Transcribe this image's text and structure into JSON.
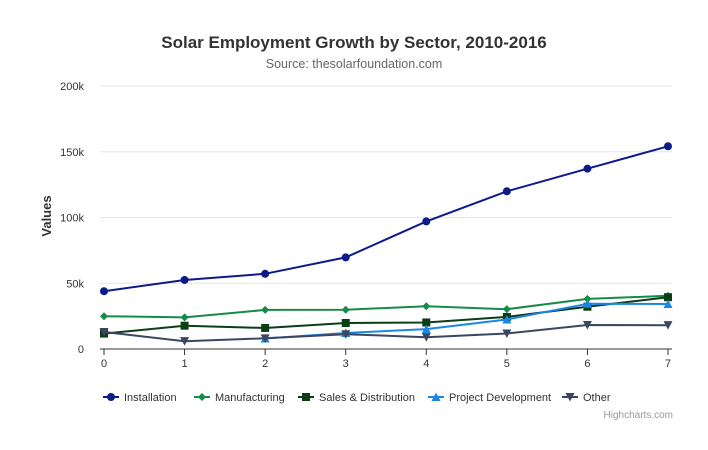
{
  "chart_data": {
    "type": "line",
    "title": "Solar Employment Growth by Sector, 2010-2016",
    "subtitle": "Source: thesolarfoundation.com",
    "xlabel": "",
    "ylabel": "Values",
    "x": [
      0,
      1,
      2,
      3,
      4,
      5,
      6,
      7
    ],
    "ylim": [
      0,
      200000
    ],
    "yticks": [
      0,
      50000,
      100000,
      150000,
      200000
    ],
    "ytick_labels": [
      "0",
      "50k",
      "100k",
      "150k",
      "200k"
    ],
    "xtick_labels": [
      "0",
      "1",
      "2",
      "3",
      "4",
      "5",
      "6",
      "7"
    ],
    "grid": true,
    "legend_position": "bottom",
    "series": [
      {
        "name": "Installation",
        "color": "#0d1a8c",
        "marker": "circle",
        "values": [
          43934,
          52503,
          57177,
          69658,
          97031,
          119931,
          137133,
          154175
        ]
      },
      {
        "name": "Manufacturing",
        "color": "#168a48",
        "marker": "diamond",
        "values": [
          24916,
          24064,
          29742,
          29851,
          32490,
          30282,
          38121,
          40434
        ]
      },
      {
        "name": "Sales & Distribution",
        "color": "#0b3d17",
        "marker": "square",
        "values": [
          11744,
          17722,
          16005,
          19771,
          20185,
          24377,
          32147,
          39387
        ]
      },
      {
        "name": "Project Development",
        "color": "#1a87e6",
        "marker": "triangle",
        "values": [
          null,
          null,
          7988,
          12169,
          15112,
          22452,
          34400,
          34227
        ]
      },
      {
        "name": "Other",
        "color": "#3b4660",
        "marker": "triangle-down",
        "values": [
          12908,
          5948,
          8105,
          11248,
          8989,
          11816,
          18274,
          18111
        ]
      }
    ]
  },
  "credits": "Highcharts.com"
}
